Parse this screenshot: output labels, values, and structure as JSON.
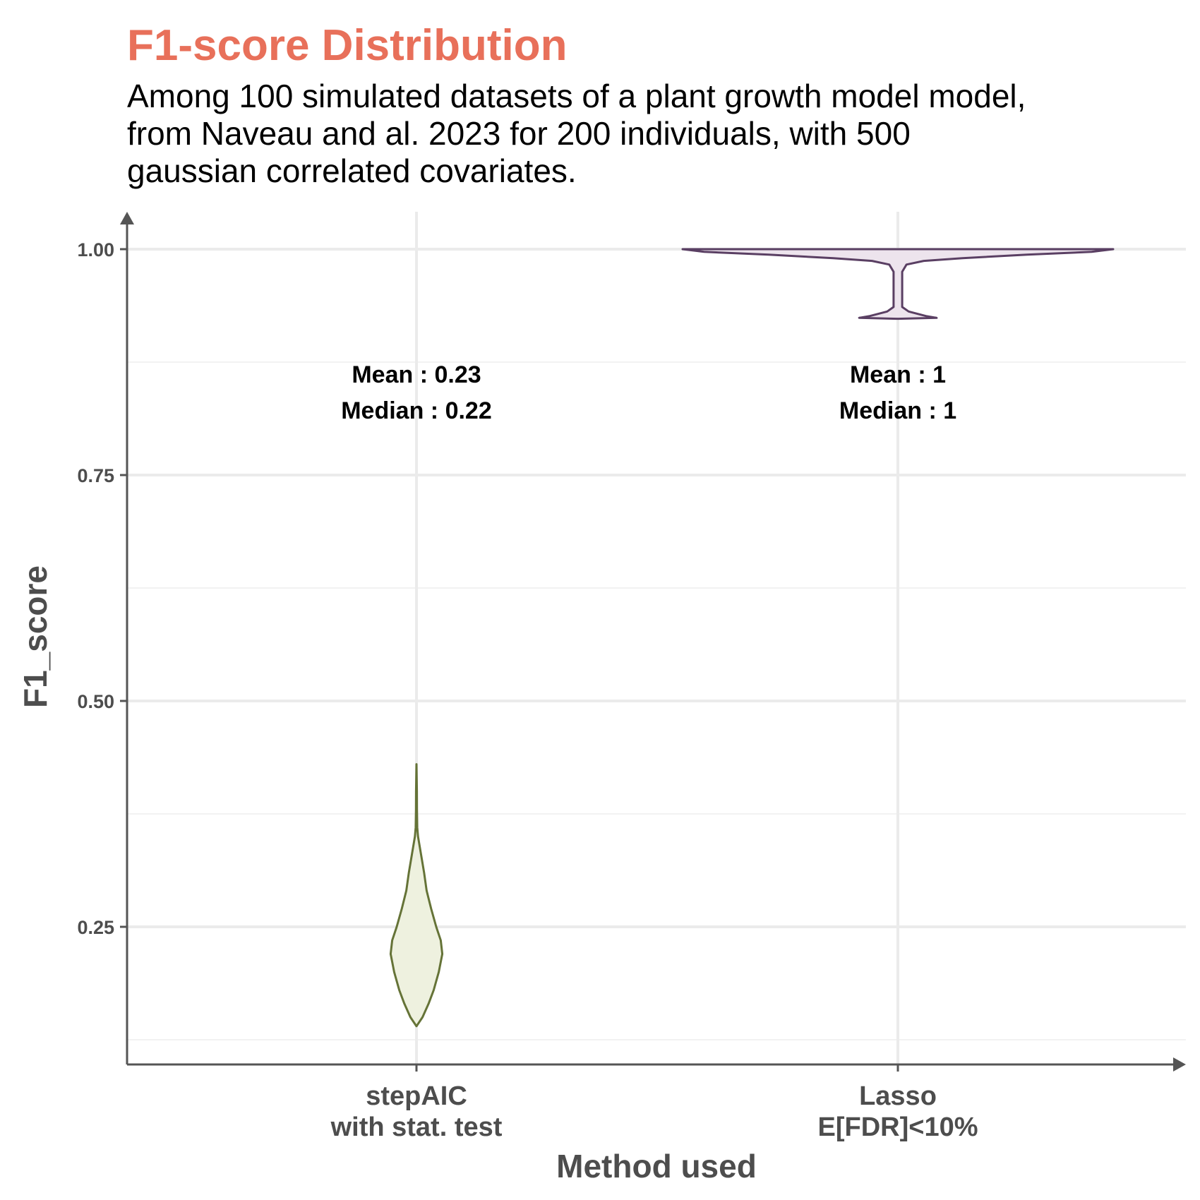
{
  "colors": {
    "title": "#E8705A",
    "axis": "#555555",
    "grid_major": "#EBEBEB",
    "grid_minor": "#F2F2F2"
  },
  "chart_data": {
    "type": "violin",
    "title": "F1-score Distribution",
    "subtitle": [
      "Among 100 simulated datasets of a plant growth model model,",
      "from Naveau and al. 2023 for 200 individuals, with 500",
      "gaussian correlated covariates."
    ],
    "xlabel": "Method used",
    "ylabel": "F1_score",
    "ylim": [
      0.12,
      1.05
    ],
    "yticks": [
      0.25,
      0.5,
      0.75,
      1.0
    ],
    "ytick_labels": [
      "0.25",
      "0.50",
      "0.75",
      "1.00"
    ],
    "grid": true,
    "categories": [
      [
        "stepAIC",
        "with stat. test"
      ],
      [
        "Lasso",
        "E[FDR]<10%"
      ]
    ],
    "series": [
      {
        "name": "stepAIC with stat. test",
        "fill": "#EEF1DF",
        "stroke": "#657337",
        "mean_label": "Mean : 0.23",
        "median_label": "Median : 0.22",
        "mean": 0.23,
        "median": 0.22,
        "min": 0.14,
        "max": 0.43,
        "density": [
          [
            0.14,
            0.0
          ],
          [
            0.15,
            0.12
          ],
          [
            0.165,
            0.24
          ],
          [
            0.18,
            0.34
          ],
          [
            0.2,
            0.44
          ],
          [
            0.22,
            0.51
          ],
          [
            0.235,
            0.48
          ],
          [
            0.25,
            0.39
          ],
          [
            0.27,
            0.29
          ],
          [
            0.29,
            0.2
          ],
          [
            0.31,
            0.15
          ],
          [
            0.33,
            0.09
          ],
          [
            0.35,
            0.03
          ],
          [
            0.36,
            0.015
          ],
          [
            0.38,
            0.01
          ],
          [
            0.4,
            0.008
          ],
          [
            0.43,
            0.0
          ]
        ]
      },
      {
        "name": "Lasso E[FDR]<10%",
        "fill": "#EDE4ED",
        "stroke": "#5A3F63",
        "mean_label": "Mean : 1",
        "median_label": "Median : 1",
        "mean": 1,
        "median": 1,
        "min": 0.923,
        "max": 1.0,
        "density": [
          [
            0.923,
            0.0
          ],
          [
            0.924,
            0.18
          ],
          [
            0.926,
            0.13
          ],
          [
            0.931,
            0.05
          ],
          [
            0.936,
            0.02
          ],
          [
            0.95,
            0.02
          ],
          [
            0.975,
            0.02
          ],
          [
            0.983,
            0.04
          ],
          [
            0.987,
            0.12
          ],
          [
            0.99,
            0.3
          ],
          [
            0.994,
            0.6
          ],
          [
            0.997,
            0.9
          ],
          [
            1.0,
            1.0
          ]
        ]
      }
    ]
  }
}
